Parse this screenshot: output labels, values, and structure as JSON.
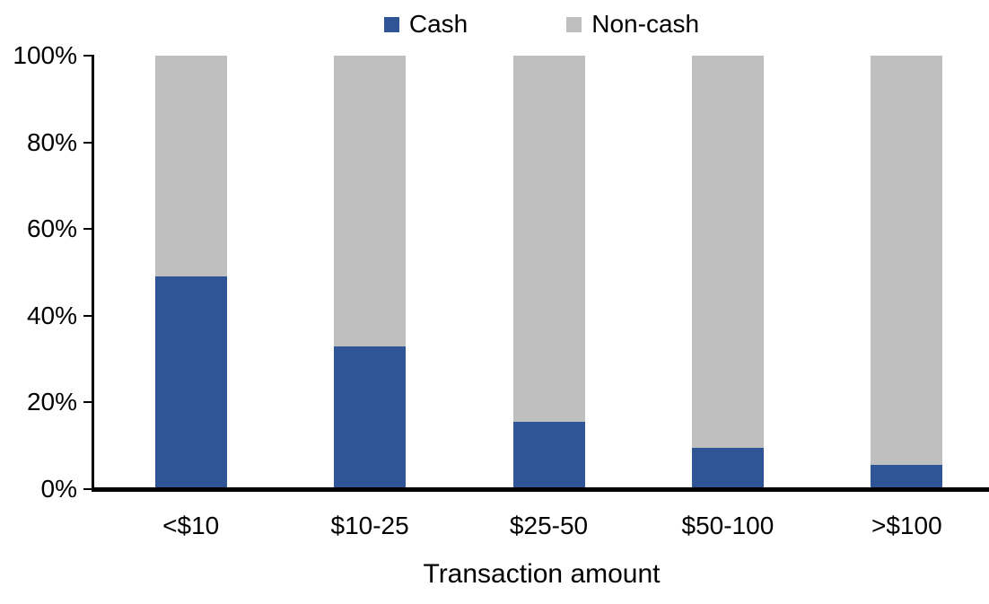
{
  "chart_data": {
    "type": "bar",
    "stacked": true,
    "title": "",
    "xlabel": "Transaction amount",
    "ylabel": "",
    "categories": [
      "<$10",
      "$10-25",
      "$25-50",
      "$50-100",
      ">$100"
    ],
    "series": [
      {
        "name": "Cash",
        "color": "#2F5597",
        "values": [
          49,
          33,
          15.5,
          9.5,
          5.5
        ]
      },
      {
        "name": "Non-cash",
        "color": "#BFBFBF",
        "values": [
          51,
          67,
          84.5,
          90.5,
          94.5
        ]
      }
    ],
    "ylim": [
      0,
      100
    ],
    "y_ticks": [
      "0%",
      "20%",
      "40%",
      "60%",
      "80%",
      "100%"
    ],
    "grid": false,
    "legend_position": "top",
    "axis_color": "#000000",
    "text_color": "#000000"
  }
}
